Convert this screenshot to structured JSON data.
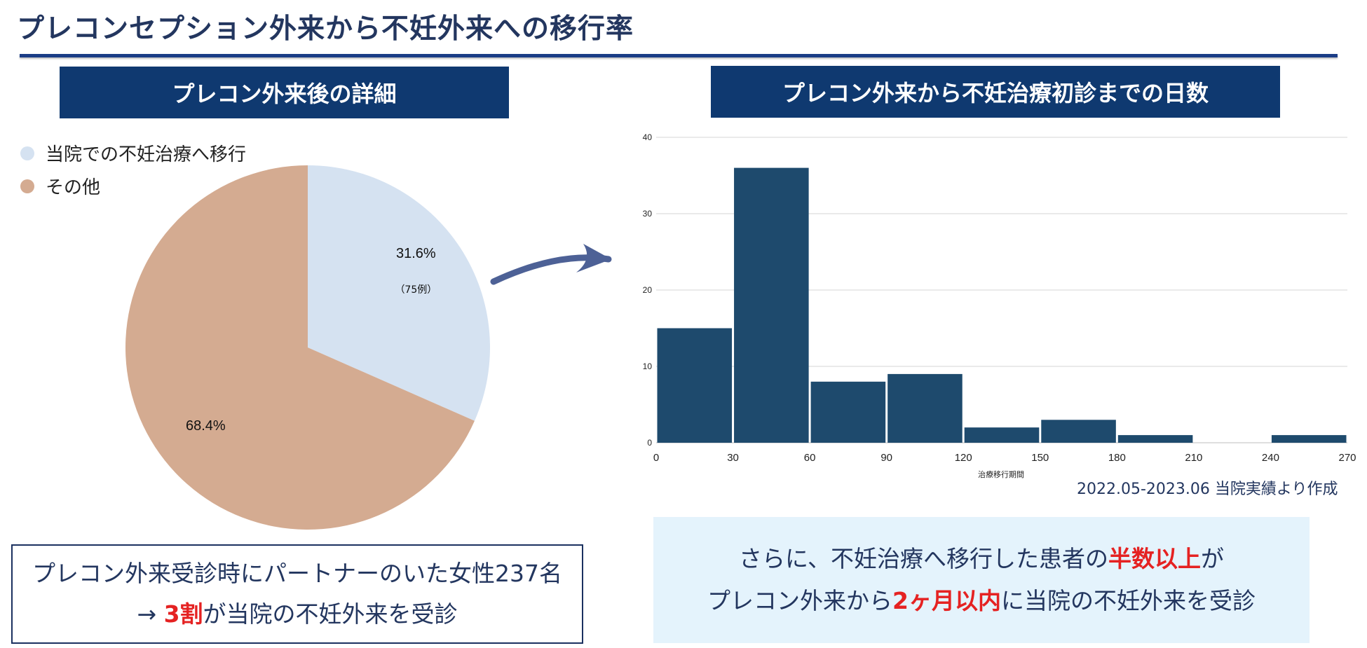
{
  "title": "プレコンセプション外来から不妊外来への移行率",
  "left_panel": {
    "heading": "プレコン外来後の詳細",
    "pie_case_label": "（75例）",
    "summary_line1": "プレコン外来受診時にパートナーのいた女性237名",
    "summary_line2_prefix": "→ ",
    "summary_line2_highlight": "3割",
    "summary_line2_suffix": "が当院の不妊外来を受診"
  },
  "right_panel": {
    "heading": "プレコン外来から不妊治療初診までの日数",
    "footnote": "2022.05-2023.06 当院実績より作成",
    "summary_line1_prefix": "さらに、不妊治療へ移行した患者の",
    "summary_line1_highlight": "半数以上",
    "summary_line1_suffix": "が",
    "summary_line2_prefix": "プレコン外来から",
    "summary_line2_highlight": "2ヶ月以内",
    "summary_line2_suffix": "に当院の不妊外来を受診"
  },
  "colors": {
    "banner": "#0f3970",
    "pie_transition": "#d5e2f1",
    "pie_other": "#d4ab91",
    "bar": "#1e4a6d",
    "arrow": "#4d6196",
    "highlight": "#e52222"
  },
  "chart_data": [
    {
      "type": "pie",
      "legend_position": "top-left",
      "labels": [
        "当院での不妊治療へ移行",
        "その他"
      ],
      "values": [
        31.6,
        68.4
      ],
      "value_labels": [
        "31.6%",
        "68.4%"
      ],
      "colors": [
        "#d5e2f1",
        "#d4ab91"
      ]
    },
    {
      "type": "bar",
      "xlabel": "治療移行期間",
      "ylabel": "",
      "bin_edges": [
        0,
        30,
        60,
        90,
        120,
        150,
        180,
        210,
        240,
        270
      ],
      "x_ticks": [
        0,
        30,
        60,
        90,
        120,
        150,
        180,
        210,
        240,
        270
      ],
      "values": [
        15,
        36,
        8,
        9,
        2,
        3,
        1,
        0,
        1
      ],
      "ylim": [
        0,
        40
      ],
      "y_ticks": [
        0,
        10,
        20,
        30,
        40
      ],
      "grid": true
    }
  ]
}
